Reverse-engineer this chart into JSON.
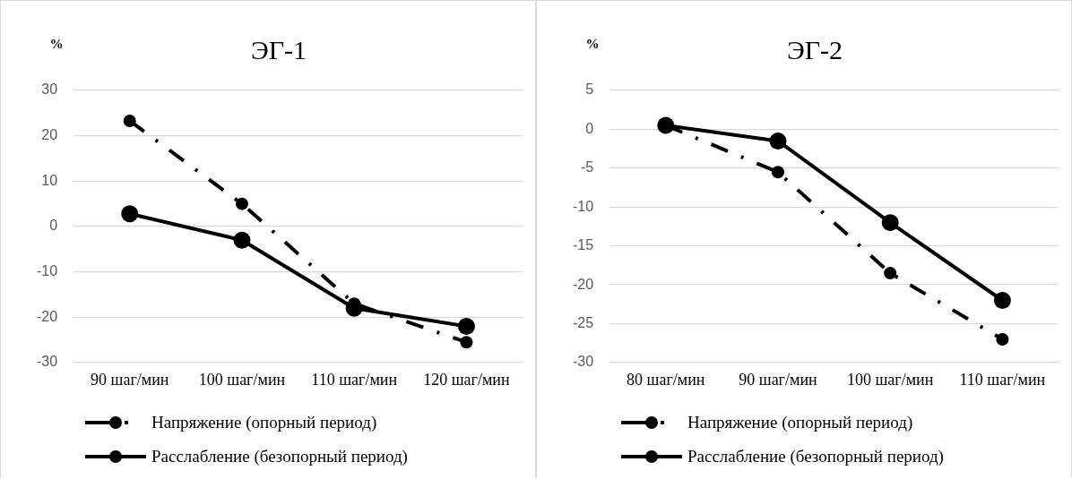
{
  "chart_data": [
    {
      "type": "line",
      "title": "ЭГ-1",
      "ylabel": "%",
      "categories": [
        "90 шаг/мин",
        "100 шаг/мин",
        "110 шаг/мин",
        "120 шаг/мин"
      ],
      "series": [
        {
          "name": "Напряжение (опорный период)",
          "color": "#000000",
          "line_style": "dashed",
          "values": [
            23.3,
            5,
            -17,
            -25.5
          ]
        },
        {
          "name": "Расслабление (безопорный период)",
          "color": "#000000",
          "line_style": "solid",
          "values": [
            2.8,
            -3,
            -18,
            -22
          ]
        }
      ],
      "ylim": [
        -30,
        30
      ],
      "yticks": [
        -30,
        -20,
        -10,
        0,
        10,
        20,
        30
      ],
      "grid": "y",
      "legend": "bottom",
      "marker": "circle"
    },
    {
      "type": "line",
      "title": "ЭГ-2",
      "ylabel": "%",
      "categories": [
        "80 шаг/мин",
        "90 шаг/мин",
        "100 шаг/мин",
        "110 шаг/мин"
      ],
      "series": [
        {
          "name": "Напряжение (опорный период)",
          "color": "#000000",
          "line_style": "dashed",
          "values": [
            0.5,
            -5.5,
            -18.5,
            -27
          ]
        },
        {
          "name": "Расслабление (безопорный период)",
          "color": "#000000",
          "line_style": "solid",
          "values": [
            0.5,
            -1.5,
            -12,
            -22
          ]
        }
      ],
      "ylim": [
        -30,
        5
      ],
      "yticks": [
        -30,
        -25,
        -20,
        -15,
        -10,
        -5,
        0,
        5
      ],
      "grid": "y",
      "legend": "bottom",
      "marker": "circle"
    }
  ]
}
